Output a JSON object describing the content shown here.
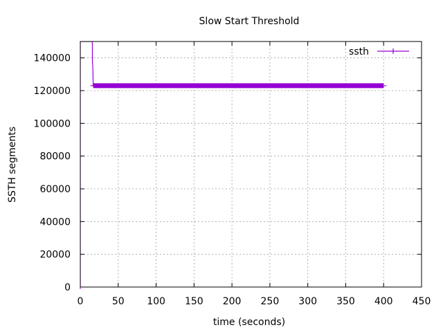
{
  "chart_data": {
    "type": "line",
    "title": "Slow Start Threshold",
    "xlabel": "time (seconds)",
    "ylabel": "SSTH segments",
    "xlim": [
      0,
      450
    ],
    "ylim": [
      0,
      150000
    ],
    "xticks": [
      0,
      50,
      100,
      150,
      200,
      250,
      300,
      350,
      400,
      450
    ],
    "yticks": [
      0,
      20000,
      40000,
      60000,
      80000,
      100000,
      120000,
      140000
    ],
    "grid": true,
    "legend_position": "top-right",
    "series": [
      {
        "name": "ssth",
        "color": "#9400d3",
        "x": [
          0,
          0,
          15.9,
          16,
          16.5,
          17,
          17.5,
          18,
          30,
          60,
          100,
          150,
          200,
          250,
          300,
          350,
          400
        ],
        "y": [
          0,
          150000,
          150000,
          137000,
          135000,
          123000,
          123500,
          123000,
          123000,
          123000,
          123000,
          123000,
          123000,
          123000,
          123000,
          123000,
          123000
        ]
      }
    ]
  }
}
